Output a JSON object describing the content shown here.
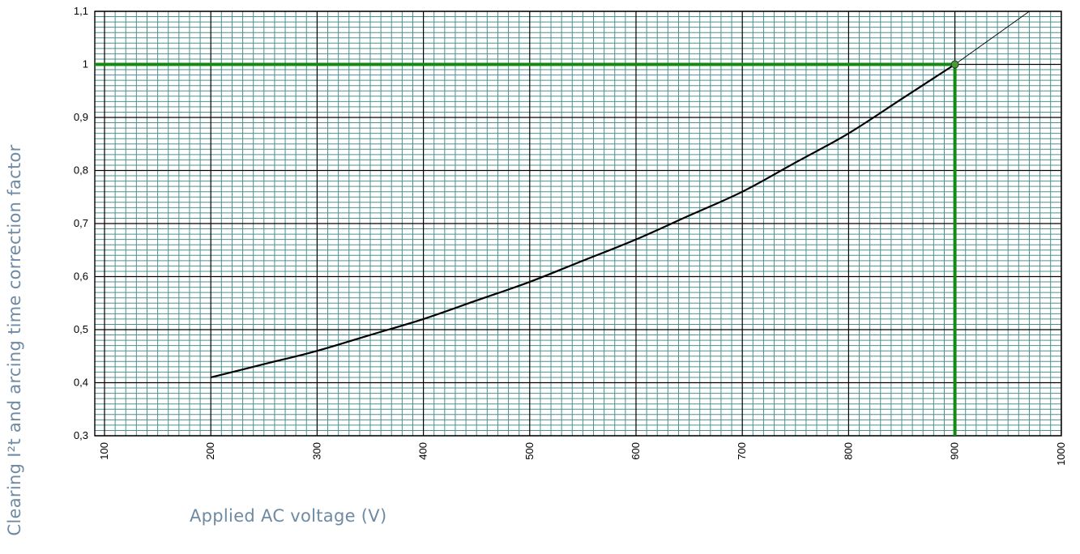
{
  "chart_data": {
    "type": "line",
    "title": "",
    "xlabel": "Applied AC voltage (V)",
    "ylabel": "Clearing I²t and arcing time correction factor",
    "xlim": [
      100,
      1000
    ],
    "ylim": [
      0.3,
      1.1
    ],
    "x_ticks": [
      "100",
      "200",
      "300",
      "400",
      "500",
      "600",
      "700",
      "800",
      "900",
      "1000"
    ],
    "y_ticks": [
      "0,3",
      "0,4",
      "0,5",
      "0,6",
      "0,7",
      "0,8",
      "0,9",
      "1",
      "1,1"
    ],
    "grid": true,
    "series": [
      {
        "values": [
          {
            "x": 200,
            "y": 0.41
          },
          {
            "x": 250,
            "y": 0.435
          },
          {
            "x": 300,
            "y": 0.46
          },
          {
            "x": 350,
            "y": 0.49
          },
          {
            "x": 400,
            "y": 0.52
          },
          {
            "x": 450,
            "y": 0.555
          },
          {
            "x": 500,
            "y": 0.59
          },
          {
            "x": 550,
            "y": 0.63
          },
          {
            "x": 600,
            "y": 0.67
          },
          {
            "x": 650,
            "y": 0.715
          },
          {
            "x": 700,
            "y": 0.76
          },
          {
            "x": 750,
            "y": 0.815
          },
          {
            "x": 800,
            "y": 0.87
          },
          {
            "x": 850,
            "y": 0.935
          },
          {
            "x": 900,
            "y": 1.0
          }
        ]
      },
      {
        "style": "thin extension",
        "values": [
          {
            "x": 900,
            "y": 1.0
          },
          {
            "x": 935,
            "y": 1.05
          },
          {
            "x": 970,
            "y": 1.1
          }
        ]
      }
    ],
    "annotations": {
      "reference_point": {
        "x": 900,
        "y": 1.0
      },
      "reference_lines_color": "#138a13",
      "marker_fill": "#4a9a3a"
    },
    "colors": {
      "major_grid": "#000000",
      "minor_grid": "#4e8f8f",
      "curve": "#000000",
      "axis_title": "#6f8aa3"
    }
  }
}
